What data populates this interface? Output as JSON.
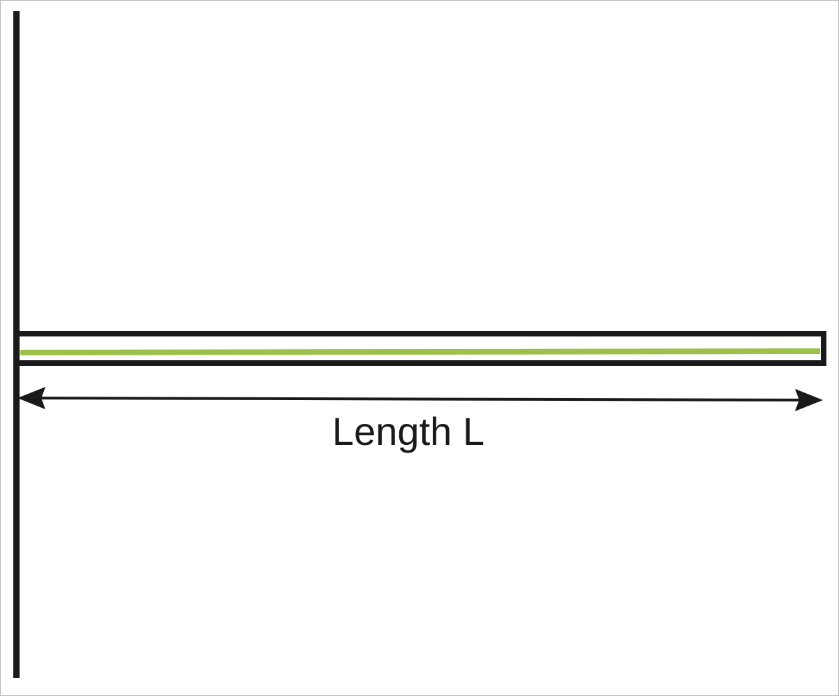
{
  "diagram": {
    "dimension_label": "Length L",
    "colors": {
      "wall": "#1a1a1a",
      "beam_outline": "#1a1a1a",
      "beam_fill": "#ffffff",
      "center_line": "#9dc04a",
      "arrow": "#1a1a1a",
      "border": "#b8b8b8"
    }
  }
}
